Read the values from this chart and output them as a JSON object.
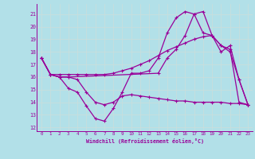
{
  "xlabel": "Windchill (Refroidissement éolien,°C)",
  "background_color": "#b2e0e8",
  "grid_color": "#c8e8e0",
  "line_color": "#990099",
  "xlim": [
    -0.5,
    23.5
  ],
  "ylim": [
    11.7,
    21.8
  ],
  "yticks": [
    12,
    13,
    14,
    15,
    16,
    17,
    18,
    19,
    20,
    21
  ],
  "xticks": [
    0,
    1,
    2,
    3,
    4,
    5,
    6,
    7,
    8,
    9,
    10,
    11,
    12,
    13,
    14,
    15,
    16,
    17,
    18,
    19,
    20,
    21,
    22,
    23
  ],
  "line1_x": [
    0,
    1,
    2,
    3,
    4,
    5,
    6,
    7,
    8,
    9,
    10,
    11,
    12,
    13,
    14,
    15,
    16,
    17,
    18,
    19,
    20,
    21,
    22,
    23
  ],
  "line1_y": [
    17.5,
    16.2,
    16.0,
    15.1,
    14.8,
    13.7,
    12.7,
    12.5,
    13.5,
    14.8,
    16.3,
    16.3,
    16.5,
    17.5,
    19.5,
    20.7,
    21.2,
    21.0,
    19.5,
    19.3,
    18.5,
    18.0,
    15.8,
    13.8
  ],
  "line2_x": [
    0,
    1,
    2,
    3,
    13,
    14,
    15,
    16,
    17,
    18,
    19,
    20,
    21,
    22,
    23
  ],
  "line2_y": [
    17.5,
    16.2,
    16.0,
    16.0,
    16.3,
    17.5,
    18.2,
    19.3,
    21.0,
    21.2,
    19.3,
    18.0,
    18.5,
    15.8,
    13.8
  ],
  "line3_x": [
    0,
    1,
    2,
    3,
    4,
    5,
    6,
    7,
    8,
    9,
    10,
    11,
    12,
    13,
    14,
    15,
    16,
    17,
    18,
    19,
    20,
    21,
    22,
    23
  ],
  "line3_y": [
    17.5,
    16.2,
    16.2,
    16.2,
    16.2,
    16.2,
    16.2,
    16.2,
    16.3,
    16.5,
    16.7,
    17.0,
    17.3,
    17.7,
    18.1,
    18.4,
    18.7,
    19.0,
    19.2,
    19.3,
    18.5,
    18.2,
    14.0,
    13.8
  ],
  "line4_x": [
    0,
    1,
    2,
    3,
    4,
    5,
    6,
    7,
    8,
    9,
    10,
    11,
    12,
    13,
    14,
    15,
    16,
    17,
    18,
    19,
    20,
    21,
    22,
    23
  ],
  "line4_y": [
    17.5,
    16.2,
    16.0,
    16.0,
    15.8,
    14.8,
    14.0,
    13.8,
    14.0,
    14.5,
    14.6,
    14.5,
    14.4,
    14.3,
    14.2,
    14.1,
    14.1,
    14.0,
    14.0,
    14.0,
    14.0,
    13.9,
    13.9,
    13.8
  ]
}
